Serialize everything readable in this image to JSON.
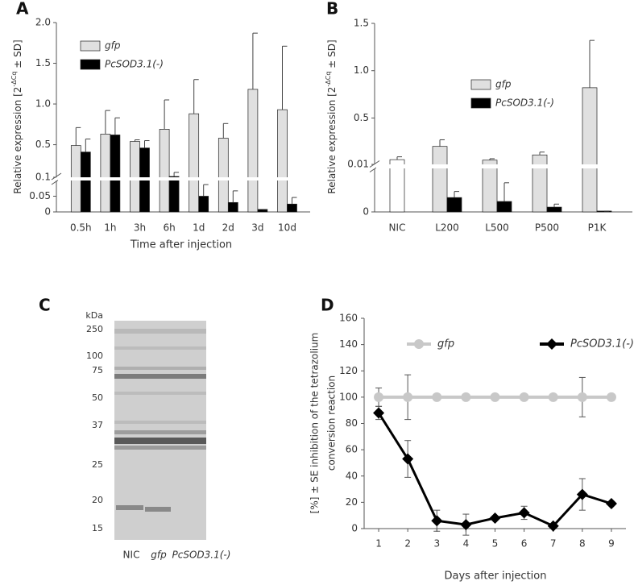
{
  "chart_data": [
    {
      "type": "bar",
      "panel": "A",
      "categories": [
        "0.5h",
        "1h",
        "3h",
        "6h",
        "1d",
        "2d",
        "3d",
        "10d"
      ],
      "series": [
        {
          "name": "gfp",
          "color": "#e0e0e0",
          "values": [
            0.49,
            0.63,
            0.54,
            0.69,
            0.88,
            0.58,
            1.18,
            0.93
          ],
          "errors": [
            0.22,
            0.29,
            0.02,
            0.36,
            0.42,
            0.18,
            0.69,
            0.78
          ]
        },
        {
          "name": "PcSOD3.1(-)",
          "color": "#000000",
          "values": [
            0.41,
            0.62,
            0.46,
            0.11,
            0.05,
            0.03,
            0.008,
            0.025
          ],
          "errors": [
            0.16,
            0.21,
            0.09,
            0.05,
            0.037,
            0.037,
            0,
            0.021
          ]
        }
      ],
      "ylim": [
        0,
        2.0
      ],
      "y_break": 0.1,
      "yticks": [
        0,
        0.05,
        0.1,
        0.5,
        {
          "value": 1.0,
          "label": "1.0"
        },
        1.5,
        {
          "value": 2.0,
          "label": "2.0"
        }
      ],
      "ylabel": [
        "Relative expression [2",
        "-ΔCq",
        " ± SD]"
      ],
      "xlabel": "Time after injection"
    },
    {
      "type": "bar",
      "panel": "B",
      "categories": [
        "NIC",
        "L200",
        "L500",
        "P500",
        "P1K"
      ],
      "series": [
        {
          "name": "gfp",
          "color": "#e0e0e0",
          "colors": [
            "#ffffff",
            "#e0e0e0",
            "#e0e0e0",
            "#e0e0e0",
            "#e0e0e0"
          ],
          "values": [
            0.06,
            0.2,
            0.055,
            0.11,
            0.82
          ],
          "errors": [
            0.03,
            0.07,
            0.015,
            0.03,
            0.5
          ]
        },
        {
          "name": "PcSOD3.1(-)",
          "color": "#000000",
          "values": [
            null,
            0.0033,
            0.0024,
            0.0011,
            0.0002
          ],
          "errors": [
            null,
            0.0014,
            0.0043,
            0.0007,
            0
          ]
        }
      ],
      "ylim": [
        0,
        1.5
      ],
      "y_break": 0.01,
      "yticks": [
        0,
        0.01,
        0.5,
        {
          "value": 1.0,
          "label": "1.0"
        },
        1.5
      ],
      "ylabel": [
        "Relative expression [2",
        "-ΔCq",
        " ± SD]"
      ]
    },
    {
      "type": "line",
      "panel": "D",
      "x": [
        1,
        2,
        3,
        4,
        5,
        6,
        7,
        8,
        9
      ],
      "xlim": [
        0.5,
        9.5
      ],
      "series": [
        {
          "name": "gfp",
          "color": "#c8c8c8",
          "marker": "circle",
          "values": [
            100,
            100,
            100,
            100,
            100,
            100,
            100,
            100,
            100
          ],
          "errors": [
            7,
            17,
            0,
            0,
            0,
            0,
            0,
            15,
            0
          ]
        },
        {
          "name": "PcSOD3.1(-)",
          "color": "#000000",
          "marker": "diamond",
          "values": [
            88,
            53,
            6,
            3,
            8,
            12,
            2,
            26,
            19
          ],
          "errors": [
            5,
            14,
            8,
            8,
            1,
            5,
            0,
            12,
            0
          ]
        }
      ],
      "ylim": [
        0,
        160
      ],
      "yticks": [
        0,
        20,
        40,
        60,
        80,
        100,
        120,
        140,
        160
      ],
      "ylabel": [
        "[%] ± SE inhibition of the tetrazolium",
        "conversion reaction"
      ],
      "xlabel": "Days after injection"
    }
  ],
  "gel": {
    "panel": "C",
    "unit": "kDa",
    "markers": [
      "250",
      "100",
      "75",
      "50",
      "37",
      "25",
      "20",
      "15"
    ],
    "lanes": [
      "NIC",
      "gfp",
      "PcSOD3.1(-)"
    ]
  }
}
